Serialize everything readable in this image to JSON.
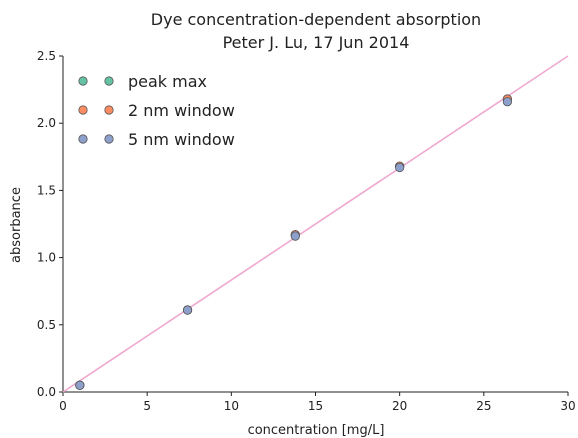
{
  "chart_data": {
    "type": "scatter",
    "title": "Dye concentration-dependent absorption",
    "subtitle": "Peter J. Lu, 17 Jun 2014",
    "xlabel": "concentration [mg/L]",
    "ylabel": "absorbance",
    "xlim": [
      0,
      30
    ],
    "ylim": [
      0,
      2.5
    ],
    "xticks": [
      "0",
      "5",
      "10",
      "15",
      "20",
      "25",
      "30"
    ],
    "yticks": [
      "0.0",
      "0.5",
      "1.0",
      "1.5",
      "2.0",
      "2.5"
    ],
    "grid": false,
    "legend_position": "top-left",
    "series": [
      {
        "name": "peak max",
        "color": "#66c2a5",
        "x": [
          1.0,
          7.4,
          13.8,
          20.0,
          26.4
        ],
        "y": [
          0.05,
          0.61,
          1.17,
          1.68,
          2.18
        ]
      },
      {
        "name": "2 nm window",
        "color": "#fc8d62",
        "x": [
          1.0,
          7.4,
          13.8,
          20.0,
          26.4
        ],
        "y": [
          0.05,
          0.61,
          1.17,
          1.68,
          2.18
        ]
      },
      {
        "name": "5 nm window",
        "color": "#8da0cb",
        "x": [
          1.0,
          7.4,
          13.8,
          20.0,
          26.4
        ],
        "y": [
          0.05,
          0.61,
          1.16,
          1.67,
          2.16
        ]
      }
    ],
    "fit_line": {
      "color": "#f0a8d0",
      "x": [
        0,
        30
      ],
      "y": [
        0,
        2.5
      ]
    }
  }
}
